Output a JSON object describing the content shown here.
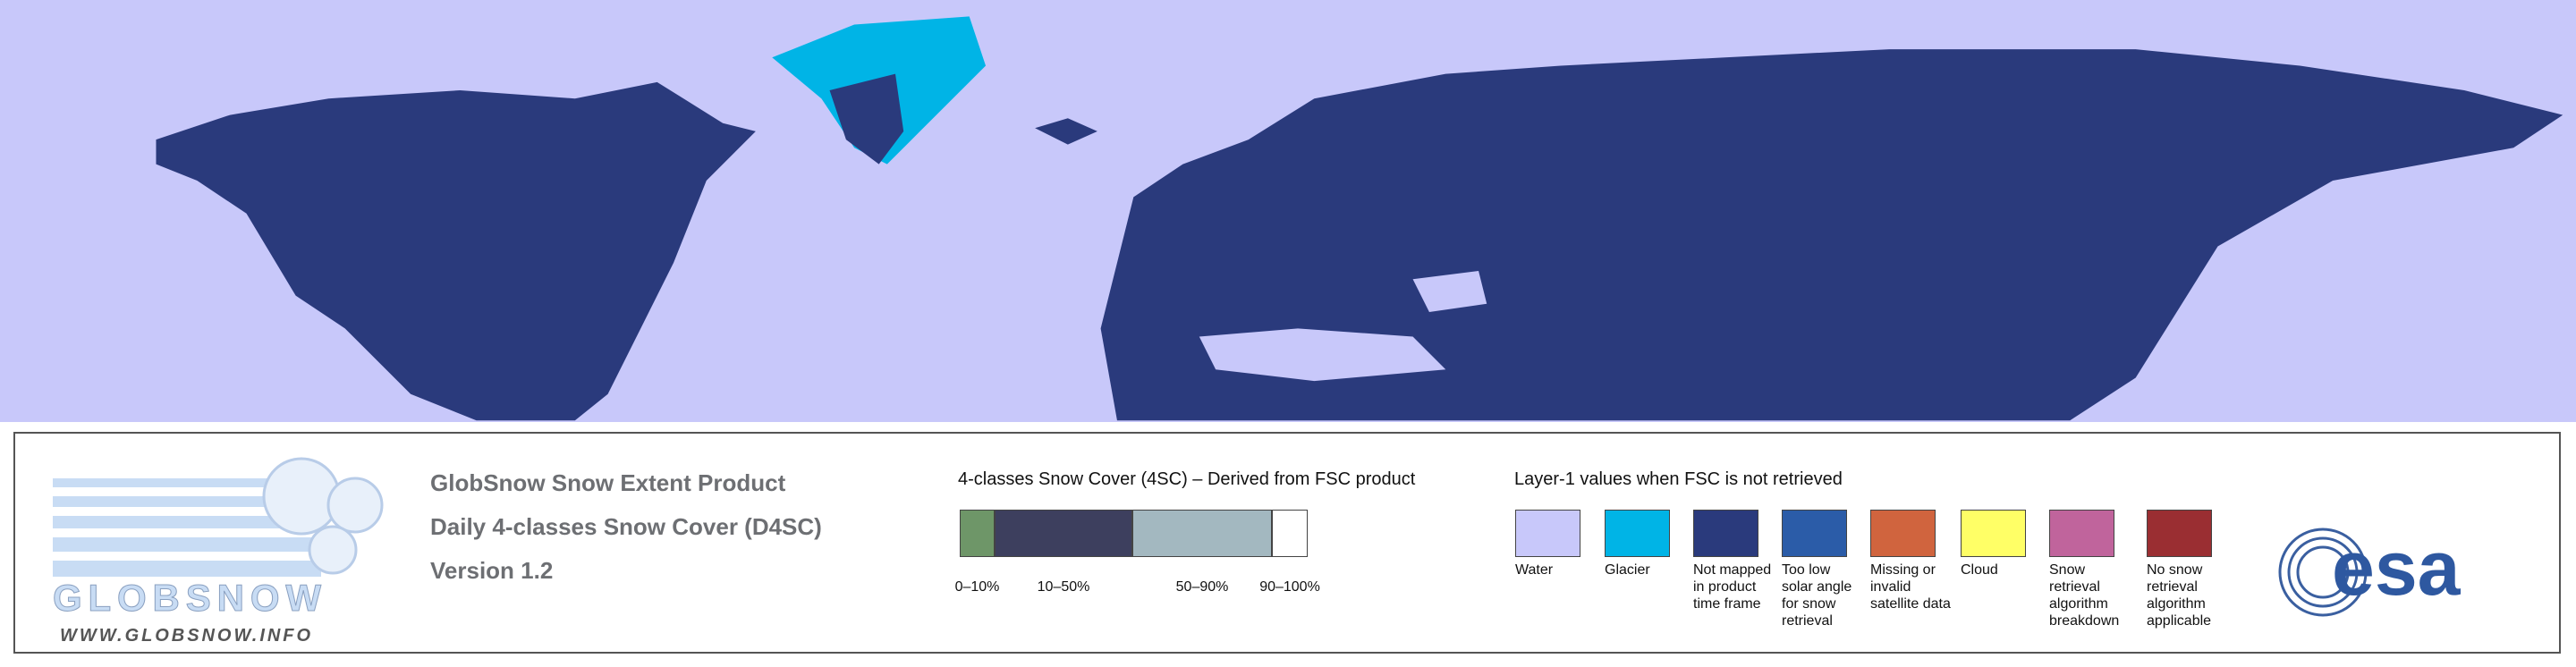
{
  "logo": {
    "name": "GLOBSNOW",
    "url": "WWW.GLOBSNOW.INFO"
  },
  "header": {
    "lines": [
      "GlobSnow Snow Extent Product",
      "Daily 4-classes Snow Cover (D4SC)",
      "Version 1.2"
    ]
  },
  "snow_legend": {
    "title": "4-classes Snow Cover (4SC) – Derived from FSC product",
    "classes": [
      {
        "label": "0–10%",
        "color": "#6e9668"
      },
      {
        "label": "10–50%",
        "color": "#3d3f5e"
      },
      {
        "label": "50–90%",
        "color": "#a3b8c0"
      },
      {
        "label": "90–100%",
        "color": "#ffffff"
      }
    ]
  },
  "layer_legend": {
    "title": "Layer-1 values when FSC is not retrieved",
    "items": [
      {
        "label": "Water",
        "color": "#c8c8fa"
      },
      {
        "label": "Glacier",
        "color": "#00b4e6"
      },
      {
        "label": "Not mapped in product time frame",
        "color": "#2a3a7c"
      },
      {
        "label": "Too low solar angle for snow retrieval",
        "color": "#2b5ca8"
      },
      {
        "label": "Missing or invalid satellite data",
        "color": "#d0643e"
      },
      {
        "label": "Cloud",
        "color": "#ffff66"
      },
      {
        "label": "Snow retrieval algorithm breakdown",
        "color": "#c0649c"
      },
      {
        "label": "No snow retrieval algorithm applicable",
        "color": "#9a2e32"
      }
    ]
  },
  "agency": {
    "name": "esa"
  }
}
